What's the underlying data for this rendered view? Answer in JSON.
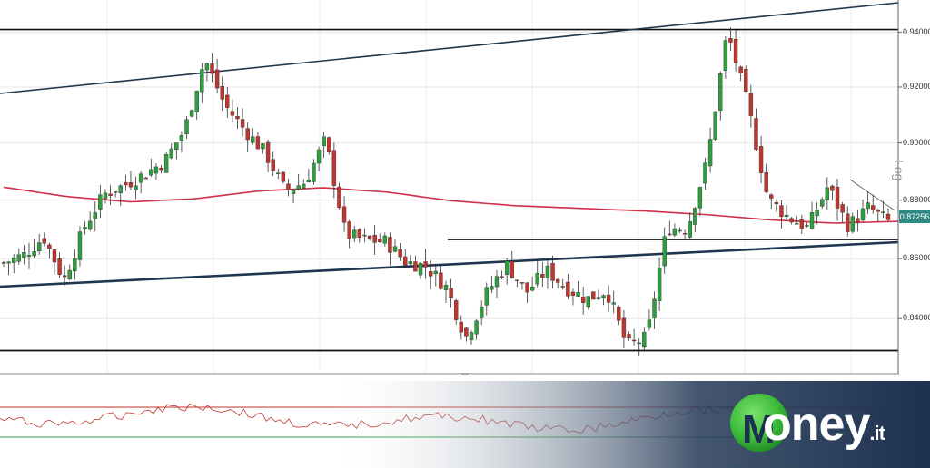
{
  "chart_data": {
    "type": "candlestick",
    "scale": "log",
    "scale_label": "Log",
    "y_ticks": [
      "0.94000",
      "0.92000",
      "0.90000",
      "0.88000",
      "0.86000",
      "0.84000"
    ],
    "y_tick_values": [
      0.94,
      0.92,
      0.9,
      0.88,
      0.86,
      0.84
    ],
    "ylim": [
      0.822,
      0.952
    ],
    "last_price": "0.87256",
    "last_price_value": 0.87256,
    "horizontal_levels": [
      0.941,
      0.8665,
      0.8295
    ],
    "grid": true,
    "moving_average_color": "#d0304a",
    "up_color": "#2e9e3e",
    "down_color": "#c0352d",
    "close_path": [
      0.8585,
      0.8612,
      0.8672,
      0.8528,
      0.8705,
      0.882,
      0.8852,
      0.889,
      0.8935,
      0.9046,
      0.9302,
      0.9135,
      0.9045,
      0.8966,
      0.8832,
      0.8863,
      0.9013,
      0.8683,
      0.8663,
      0.8658,
      0.8589,
      0.8575,
      0.8505,
      0.8337,
      0.8482,
      0.8582,
      0.8487,
      0.8561,
      0.8502,
      0.8464,
      0.8494,
      0.8309,
      0.8337,
      0.8705,
      0.8702,
      0.8937,
      0.9402,
      0.9139,
      0.8807,
      0.8742,
      0.8704,
      0.8848,
      0.8711,
      0.8774,
      0.8726
    ],
    "ma_path": [
      0.8845,
      0.8812,
      0.8794,
      0.8805,
      0.8832,
      0.8843,
      0.8828,
      0.8798,
      0.8781,
      0.8772,
      0.8763,
      0.875,
      0.8732,
      0.8721,
      0.8727
    ]
  },
  "indicator": {
    "upper_level_color": "#c0352d",
    "lower_level_color": "#2e9e3e",
    "line_color": "#c0352d"
  },
  "brand": {
    "name": "oney",
    "suffix": ".it",
    "logo_letter": "M",
    "icon": "money-logo-icon"
  }
}
